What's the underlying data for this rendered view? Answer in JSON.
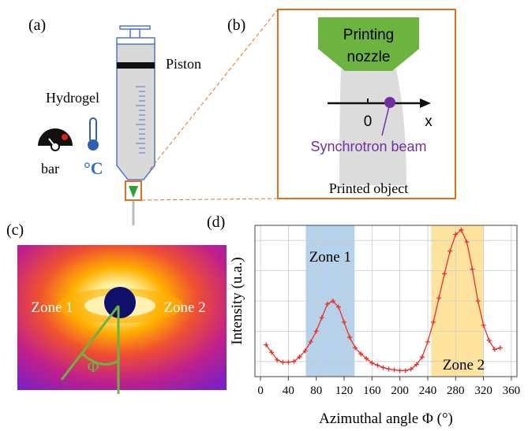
{
  "panels": {
    "a": {
      "label": "(a)",
      "piston": "Piston",
      "hydrogel": "Hydrogel",
      "bar": "bar",
      "celsius": "°C"
    },
    "b": {
      "label": "(b)",
      "nozzle_line1": "Printing",
      "nozzle_line2": "nozzle",
      "origin": "0",
      "axis": "x",
      "beam": "Synchrotron beam",
      "object": "Printed object"
    },
    "c": {
      "label": "(c)",
      "zone1": "Zone 1",
      "zone2": "Zone 2",
      "angle": "Φ"
    },
    "d": {
      "label": "(d)"
    }
  },
  "chart_data": {
    "type": "line",
    "xlabel": "Azimuthal angle Φ (°)",
    "ylabel": "Intensity (u.a.)",
    "x": [
      8,
      16,
      24,
      32,
      40,
      48,
      56,
      64,
      72,
      80,
      88,
      96,
      104,
      112,
      120,
      128,
      136,
      144,
      152,
      160,
      168,
      176,
      184,
      192,
      200,
      208,
      216,
      224,
      232,
      240,
      248,
      256,
      264,
      272,
      280,
      288,
      296,
      304,
      312,
      320,
      328,
      336,
      344
    ],
    "series": [
      {
        "color": "#e8302a",
        "values": [
          2.1,
          1.6,
          1.1,
          0.95,
          0.95,
          1.0,
          1.3,
          1.7,
          2.3,
          3.0,
          3.9,
          4.8,
          5.0,
          4.6,
          3.6,
          2.6,
          1.9,
          1.5,
          1.2,
          0.9,
          0.75,
          0.6,
          0.5,
          0.45,
          0.4,
          0.4,
          0.5,
          0.8,
          1.3,
          2.3,
          3.6,
          5.2,
          6.8,
          8.3,
          9.4,
          9.7,
          8.9,
          7.1,
          5.0,
          3.4,
          2.4,
          1.8,
          1.9
        ]
      }
    ],
    "bands": [
      {
        "label": "Zone 1",
        "range": [
          65,
          135
        ],
        "color": "#9cc3e3"
      },
      {
        "label": "Zone 2",
        "range": [
          245,
          320
        ],
        "color": "#fcd97e"
      }
    ],
    "xlim": [
      -8,
      368
    ],
    "ylim": [
      0,
      10
    ],
    "xticks": [
      0,
      40,
      80,
      120,
      160,
      200,
      240,
      280,
      320,
      360
    ],
    "grid": true
  }
}
